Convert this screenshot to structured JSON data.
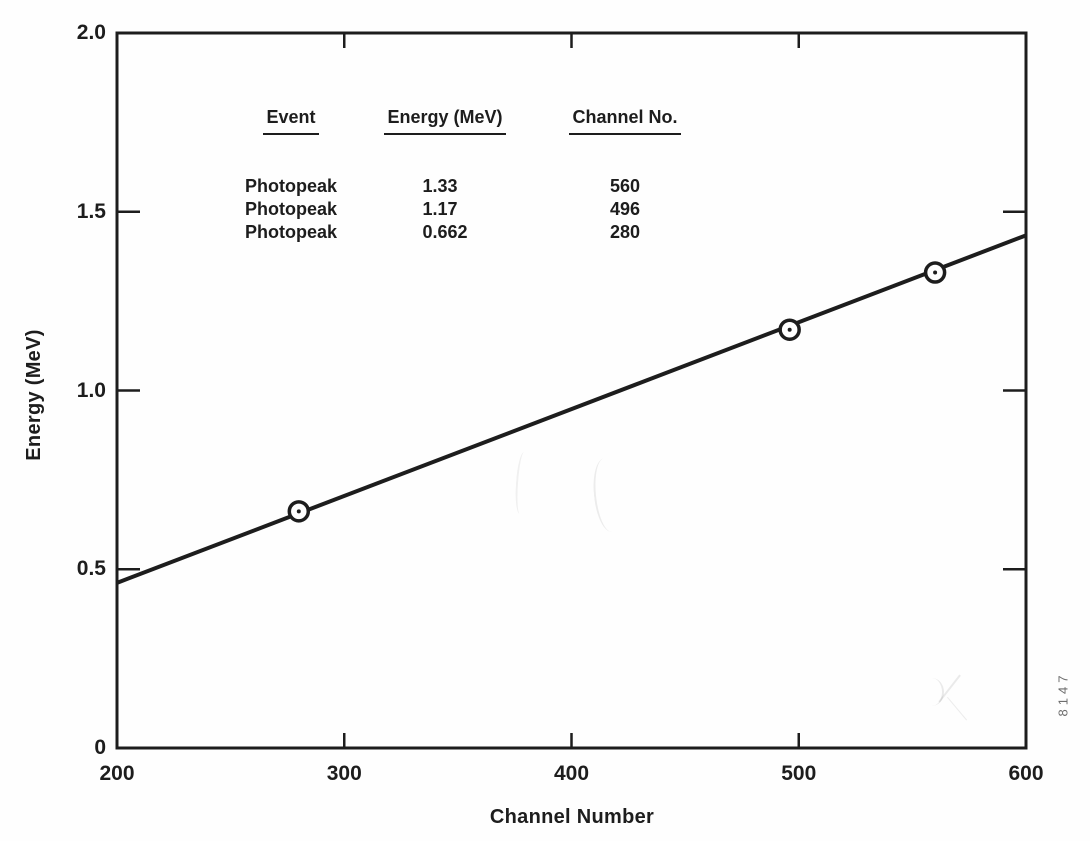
{
  "figure": {
    "background": "#fefefe",
    "ink_color": "#1d1d1d",
    "figure_number": "8147",
    "figure_number_color": "#6d6d6d"
  },
  "chart_data": {
    "type": "scatter",
    "title": "",
    "xlabel": "Channel Number",
    "ylabel": "Energy (MeV)",
    "xlim": [
      200,
      600
    ],
    "ylim": [
      0,
      2.0
    ],
    "grid": false,
    "frame": "full-box-inward-ticks",
    "x_ticks": [
      {
        "value": 200,
        "label": "200"
      },
      {
        "value": 300,
        "label": "300"
      },
      {
        "value": 400,
        "label": "400"
      },
      {
        "value": 500,
        "label": "500"
      },
      {
        "value": 600,
        "label": "600"
      }
    ],
    "y_ticks": [
      {
        "value": 0,
        "label": "0"
      },
      {
        "value": 0.5,
        "label": "0.5"
      },
      {
        "value": 1.0,
        "label": "1.0"
      },
      {
        "value": 1.5,
        "label": "1.5"
      },
      {
        "value": 2.0,
        "label": "2.0"
      }
    ],
    "series": [
      {
        "name": "calibration-points",
        "marker": "open-circle-with-center-dot",
        "points": [
          {
            "x": 280,
            "y": 0.662
          },
          {
            "x": 496,
            "y": 1.17
          },
          {
            "x": 560,
            "y": 1.33
          }
        ]
      }
    ],
    "fit_line": {
      "x": [
        200,
        600
      ],
      "y": [
        0.462,
        1.434
      ]
    }
  },
  "inset_table": {
    "headers": [
      "Event",
      "Energy (MeV)",
      "Channel No."
    ],
    "rows": [
      [
        "Photopeak",
        "1.33",
        "560"
      ],
      [
        "Photopeak",
        "1.17",
        "496"
      ],
      [
        "Photopeak",
        "0.662",
        "280"
      ]
    ]
  }
}
